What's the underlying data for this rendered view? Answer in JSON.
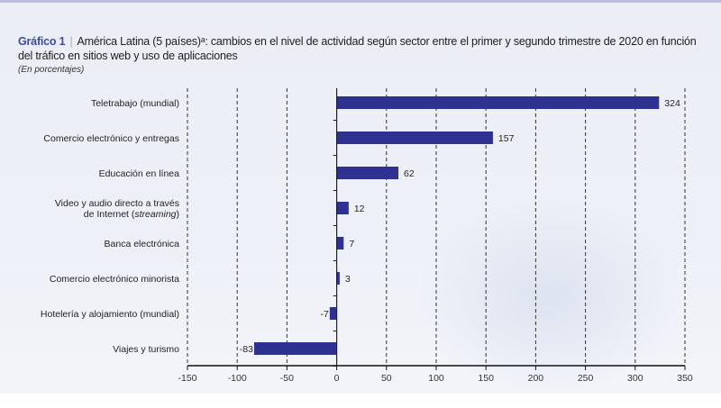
{
  "header": {
    "label": "Gráfico 1",
    "title": "América Latina (5 países)ᵃ: cambios en el nivel de actividad según sector entre el primer y segundo trimestre de 2020 en función del tráfico en sitios web y uso de aplicaciones",
    "subtitle": "(En porcentajes)"
  },
  "chart_data": {
    "type": "bar",
    "orientation": "horizontal",
    "title": "América Latina (5 países): cambios en el nivel de actividad según sector entre el primer y segundo trimestre de 2020 en función del tráfico en sitios web y uso de aplicaciones",
    "xlabel": "",
    "ylabel": "",
    "unit": "En porcentajes",
    "categories": [
      [
        "Teletrabajo (mundial)"
      ],
      [
        "Comercio electrónico y entregas"
      ],
      [
        "Educación en línea"
      ],
      [
        "Video y audio directo a través",
        "de Internet (streaming)"
      ],
      [
        "Banca electrónica"
      ],
      [
        "Comercio electrónico minorista"
      ],
      [
        "Hotelería y alojamiento (mundial)"
      ],
      [
        "Viajes y turismo"
      ]
    ],
    "values": [
      324,
      157,
      62,
      12,
      7,
      3,
      -7,
      -83
    ],
    "xlim": [
      -150,
      350
    ],
    "xticks": [
      -150,
      -100,
      -50,
      0,
      50,
      100,
      150,
      200,
      250,
      300,
      350
    ],
    "grid": "vertical dashed",
    "bar_color": "#2e3190"
  }
}
